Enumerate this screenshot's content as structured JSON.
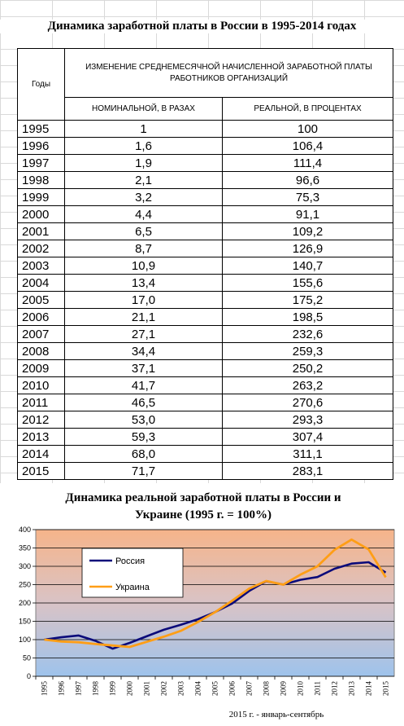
{
  "table": {
    "title": "Динамика заработной платы в России в 1995-2014  годах",
    "header_years": "Годы",
    "header_group": "ИЗМЕНЕНИЕ СРЕДНЕМЕСЯЧНОЙ НАЧИСЛЕННОЙ ЗАРАБОТНОЙ ПЛАТЫ РАБОТНИКОВ ОРГАНИЗАЦИЙ",
    "header_nominal": "НОМИНАЛЬНОЙ, В РАЗАХ",
    "header_real": "РЕАЛЬНОЙ, В ПРОЦЕНТАХ",
    "rows": [
      {
        "year": "1995",
        "nominal": "1",
        "real": "100"
      },
      {
        "year": "1996",
        "nominal": "1,6",
        "real": "106,4"
      },
      {
        "year": "1997",
        "nominal": "1,9",
        "real": "111,4"
      },
      {
        "year": "1998",
        "nominal": "2,1",
        "real": "96,6"
      },
      {
        "year": "1999",
        "nominal": "3,2",
        "real": "75,3"
      },
      {
        "year": "2000",
        "nominal": "4,4",
        "real": "91,1"
      },
      {
        "year": "2001",
        "nominal": "6,5",
        "real": "109,2"
      },
      {
        "year": "2002",
        "nominal": "8,7",
        "real": "126,9"
      },
      {
        "year": "2003",
        "nominal": "10,9",
        "real": "140,7"
      },
      {
        "year": "2004",
        "nominal": "13,4",
        "real": "155,6"
      },
      {
        "year": "2005",
        "nominal": "17,0",
        "real": "175,2"
      },
      {
        "year": "2006",
        "nominal": "21,1",
        "real": "198,5"
      },
      {
        "year": "2007",
        "nominal": "27,1",
        "real": "232,6"
      },
      {
        "year": "2008",
        "nominal": "34,4",
        "real": "259,3"
      },
      {
        "year": "2009",
        "nominal": "37,1",
        "real": "250,2"
      },
      {
        "year": "2010",
        "nominal": "41,7",
        "real": "263,2"
      },
      {
        "year": "2011",
        "nominal": "46,5",
        "real": "270,6"
      },
      {
        "year": "2012",
        "nominal": "53,0",
        "real": "293,3"
      },
      {
        "year": "2013",
        "nominal": "59,3",
        "real": "307,4"
      },
      {
        "year": "2014",
        "nominal": "68,0",
        "real": "311,1"
      },
      {
        "year": "2015",
        "nominal": "71,7",
        "real": "283,1"
      }
    ]
  },
  "chart_data": {
    "type": "line",
    "title_line1": "Динамика реальной заработной платы в России и",
    "title_line2": "Украине (1995 г. = 100%)",
    "xlabel": "2015 г. - январь-сентябрь",
    "x": [
      "1995",
      "1996",
      "1997",
      "1998",
      "1999",
      "2000",
      "2001",
      "2002",
      "2003",
      "2004",
      "2005",
      "2006",
      "2007",
      "2008",
      "2009",
      "2010",
      "2011",
      "2012",
      "2013",
      "2014",
      "2015"
    ],
    "ylim": [
      0,
      400
    ],
    "yticks": [
      "0",
      "50",
      "100",
      "150",
      "200",
      "250",
      "300",
      "350",
      "400"
    ],
    "grid": true,
    "legend_position": "top-left",
    "series": [
      {
        "name": "Россия",
        "color": "#0b0b7a",
        "values": [
          100,
          106.4,
          111.4,
          96.6,
          75.3,
          91.1,
          109.2,
          126.9,
          140.7,
          155.6,
          175.2,
          198.5,
          232.6,
          259.3,
          250.2,
          263.2,
          270.6,
          293.3,
          307.4,
          311.1,
          283.1
        ]
      },
      {
        "name": "Украина",
        "color": "#ff9e16",
        "values": [
          100,
          95,
          93,
          88,
          84,
          80,
          94,
          108,
          124,
          148,
          175,
          206,
          239,
          260,
          250,
          277,
          300,
          345,
          373,
          346,
          270
        ]
      }
    ],
    "background_top": "#f6b48a",
    "background_bottom": "#9ec3ec"
  }
}
